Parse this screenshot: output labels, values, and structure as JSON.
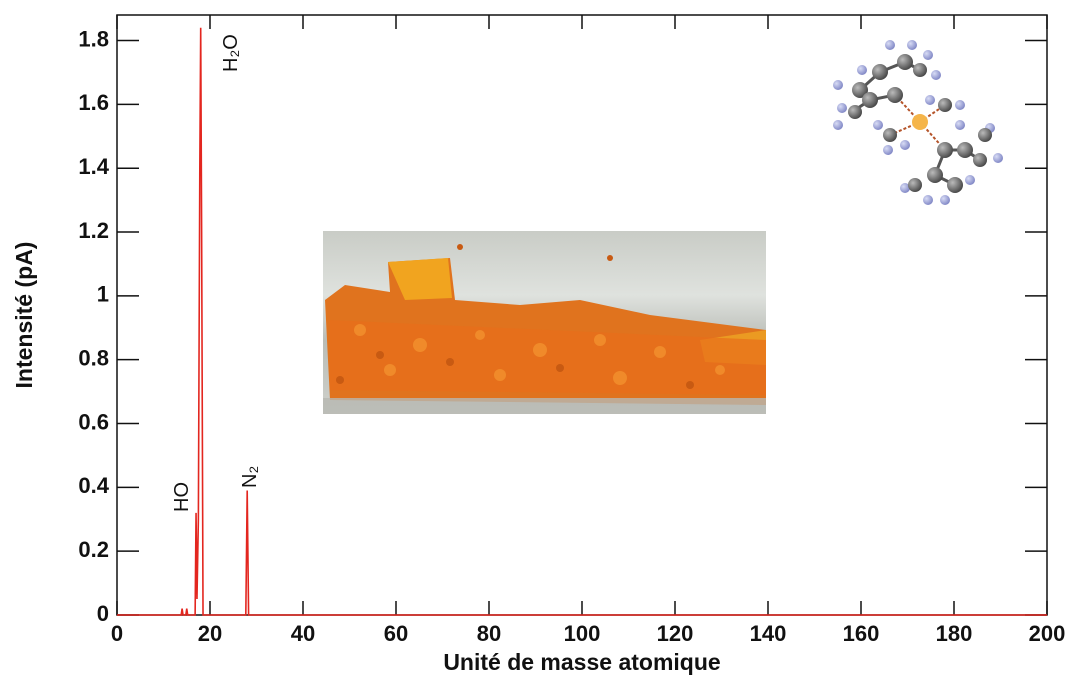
{
  "chart_data": {
    "type": "line",
    "xlabel": "Unité de masse atomique",
    "ylabel": "Intensité (pA)",
    "annotations": [
      "HO",
      "H₂O",
      "N₂"
    ],
    "x": [
      0,
      13.8,
      14,
      14.2,
      14.8,
      15,
      15.2,
      16.8,
      17,
      17.2,
      17.5,
      17.8,
      18,
      18.2,
      18.5,
      27.7,
      28,
      28.3,
      200
    ],
    "series": [
      {
        "color": "#e3261f",
        "values": [
          0,
          0,
          0.02,
          0,
          0,
          0.02,
          0,
          0,
          0.32,
          0.05,
          0.3,
          1.38,
          1.84,
          1.2,
          0,
          0,
          0.39,
          0,
          0
        ]
      }
    ],
    "xlim": [
      0,
      200
    ],
    "xticks": [
      0,
      20,
      40,
      60,
      80,
      100,
      120,
      140,
      160,
      180,
      200
    ],
    "ylim": [
      0,
      1.88
    ],
    "yticks": [
      0,
      0.2,
      0.4,
      0.6,
      0.8,
      1,
      1.2,
      1.4,
      1.6,
      1.8
    ]
  }
}
